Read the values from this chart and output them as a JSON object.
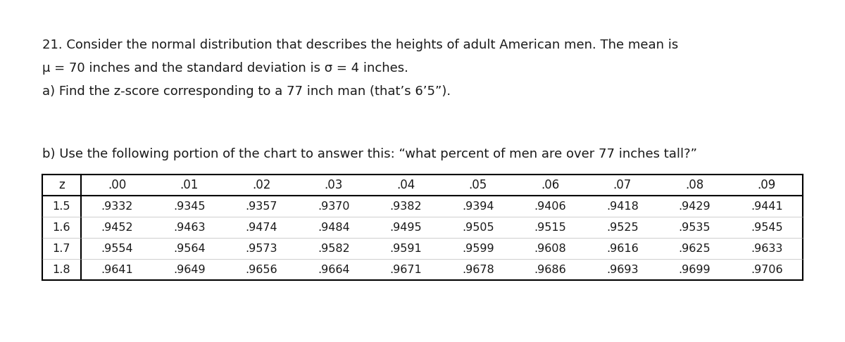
{
  "title_line1": "21. Consider the normal distribution that describes the heights of adult American men. The mean is",
  "title_line2": "μ = 70 inches and the standard deviation is σ = 4 inches.",
  "title_line3": "a) Find the z-score corresponding to a 77 inch man (that’s 6’5”).",
  "part_b_label": "b) Use the following portion of the chart to answer this: “what percent of men are over 77 inches tall?”",
  "col_headers": [
    "z",
    ".00",
    ".01",
    ".02",
    ".03",
    ".04",
    ".05",
    ".06",
    ".07",
    ".08",
    ".09"
  ],
  "rows": [
    [
      "1.5",
      ".9332",
      ".9345",
      ".9357",
      ".9370",
      ".9382",
      ".9394",
      ".9406",
      ".9418",
      ".9429",
      ".9441"
    ],
    [
      "1.6",
      ".9452",
      ".9463",
      ".9474",
      ".9484",
      ".9495",
      ".9505",
      ".9515",
      ".9525",
      ".9535",
      ".9545"
    ],
    [
      "1.7",
      ".9554",
      ".9564",
      ".9573",
      ".9582",
      ".9591",
      ".9599",
      ".9608",
      ".9616",
      ".9625",
      ".9633"
    ],
    [
      "1.8",
      ".9641",
      ".9649",
      ".9656",
      ".9664",
      ".9671",
      ".9678",
      ".9686",
      ".9693",
      ".9699",
      ".9706"
    ]
  ],
  "bg_color": "#ffffff",
  "text_color": "#1a1a1a",
  "font_size_main": 13.0,
  "font_size_table": 11.5,
  "table_header_fontsize": 12.0,
  "fig_width": 12.0,
  "fig_height": 4.86,
  "dpi": 100
}
